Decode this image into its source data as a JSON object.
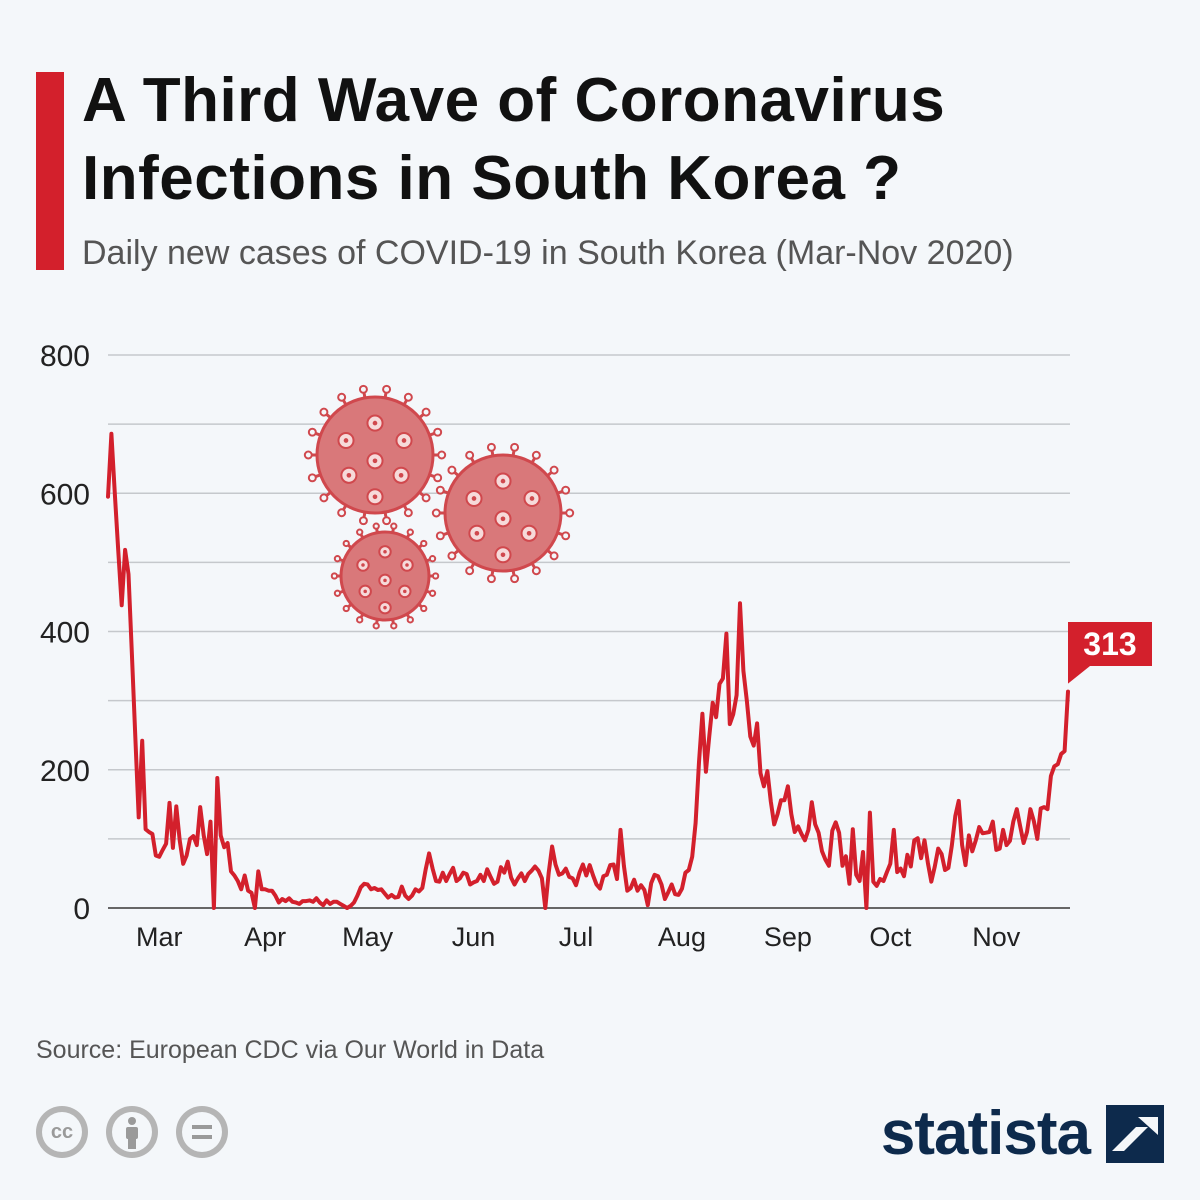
{
  "header": {
    "title": "A Third Wave of Coronavirus Infections in South Korea ?",
    "subtitle": "Daily new cases of COVID-19 in South Korea (Mar-Nov 2020)"
  },
  "footer": {
    "source": "Source: European CDC via Our World in Data",
    "brand": "statista",
    "license_icons": [
      "cc-icon",
      "by-icon",
      "nd-icon"
    ]
  },
  "colors": {
    "accent": "#d3202c",
    "line": "#d3202c",
    "virus": "#d9787a",
    "brand": "#0d2a4c"
  },
  "chart_data": {
    "type": "line",
    "title": "Daily new cases of COVID-19 in South Korea (Mar-Nov 2020)",
    "xlabel": "",
    "ylabel": "",
    "ylim": [
      0,
      800
    ],
    "yticks": [
      0,
      200,
      400,
      600,
      800
    ],
    "xticks": [
      {
        "label": "Mar",
        "day": 15
      },
      {
        "label": "Apr",
        "day": 46
      },
      {
        "label": "May",
        "day": 76
      },
      {
        "label": "Jun",
        "day": 107
      },
      {
        "label": "Jul",
        "day": 137
      },
      {
        "label": "Aug",
        "day": 168
      },
      {
        "label": "Sep",
        "day": 199
      },
      {
        "label": "Oct",
        "day": 229
      },
      {
        "label": "Nov",
        "day": 260
      }
    ],
    "x_start": "2020-02-29",
    "annotation": {
      "label": "313",
      "value": 313
    },
    "series": [
      {
        "name": "Daily new cases",
        "values": [
          595,
          686,
          600,
          518,
          438,
          518,
          483,
          367,
          248,
          131,
          242,
          114,
          110,
          107,
          76,
          74,
          84,
          93,
          152,
          87,
          147,
          98,
          64,
          76,
          100,
          104,
          91,
          146,
          105,
          78,
          125,
          0,
          188,
          105,
          88,
          94,
          53,
          47,
          39,
          27,
          47,
          25,
          22,
          0,
          53,
          27,
          27,
          25,
          25,
          18,
          8,
          13,
          10,
          14,
          9,
          8,
          6,
          10,
          10,
          11,
          9,
          14,
          8,
          4,
          11,
          6,
          9,
          9,
          6,
          3,
          0,
          3,
          8,
          18,
          30,
          35,
          34,
          27,
          29,
          26,
          27,
          21,
          15,
          19,
          15,
          16,
          31,
          18,
          13,
          18,
          27,
          24,
          29,
          56,
          79,
          57,
          39,
          38,
          51,
          39,
          49,
          58,
          39,
          43,
          51,
          49,
          34,
          37,
          39,
          48,
          39,
          56,
          45,
          35,
          38,
          59,
          51,
          67,
          44,
          34,
          43,
          50,
          39,
          49,
          54,
          60,
          54,
          43,
          0,
          51,
          89,
          63,
          48,
          50,
          57,
          45,
          43,
          33,
          51,
          63,
          47,
          62,
          47,
          34,
          28,
          46,
          48,
          62,
          63,
          42,
          113,
          61,
          25,
          29,
          41,
          25,
          33,
          26,
          4,
          36,
          48,
          46,
          34,
          13,
          23,
          34,
          20,
          19,
          28,
          51,
          55,
          74,
          123,
          211,
          281,
          197,
          249,
          297,
          276,
          324,
          332,
          397,
          266,
          280,
          308,
          441,
          343,
          299,
          248,
          235,
          267,
          195,
          176,
          198,
          154,
          121,
          136,
          156,
          156,
          176,
          136,
          110,
          118,
          107,
          98,
          113,
          153,
          121,
          109,
          82,
          70,
          61,
          112,
          124,
          109,
          61,
          75,
          35,
          114,
          48,
          39,
          81,
          0,
          138,
          38,
          32,
          42,
          39,
          52,
          64,
          113,
          52,
          57,
          46,
          77,
          60,
          98,
          101,
          72,
          98,
          65,
          38,
          60,
          86,
          78,
          55,
          58,
          90,
          133,
          155,
          91,
          62,
          105,
          82,
          98,
          117,
          108,
          109,
          110,
          125,
          84,
          86,
          113,
          91,
          97,
          125,
          143,
          118,
          94,
          110,
          143,
          126,
          100,
          144,
          146,
          143,
          191,
          205,
          208,
          223,
          227,
          313
        ]
      }
    ]
  }
}
